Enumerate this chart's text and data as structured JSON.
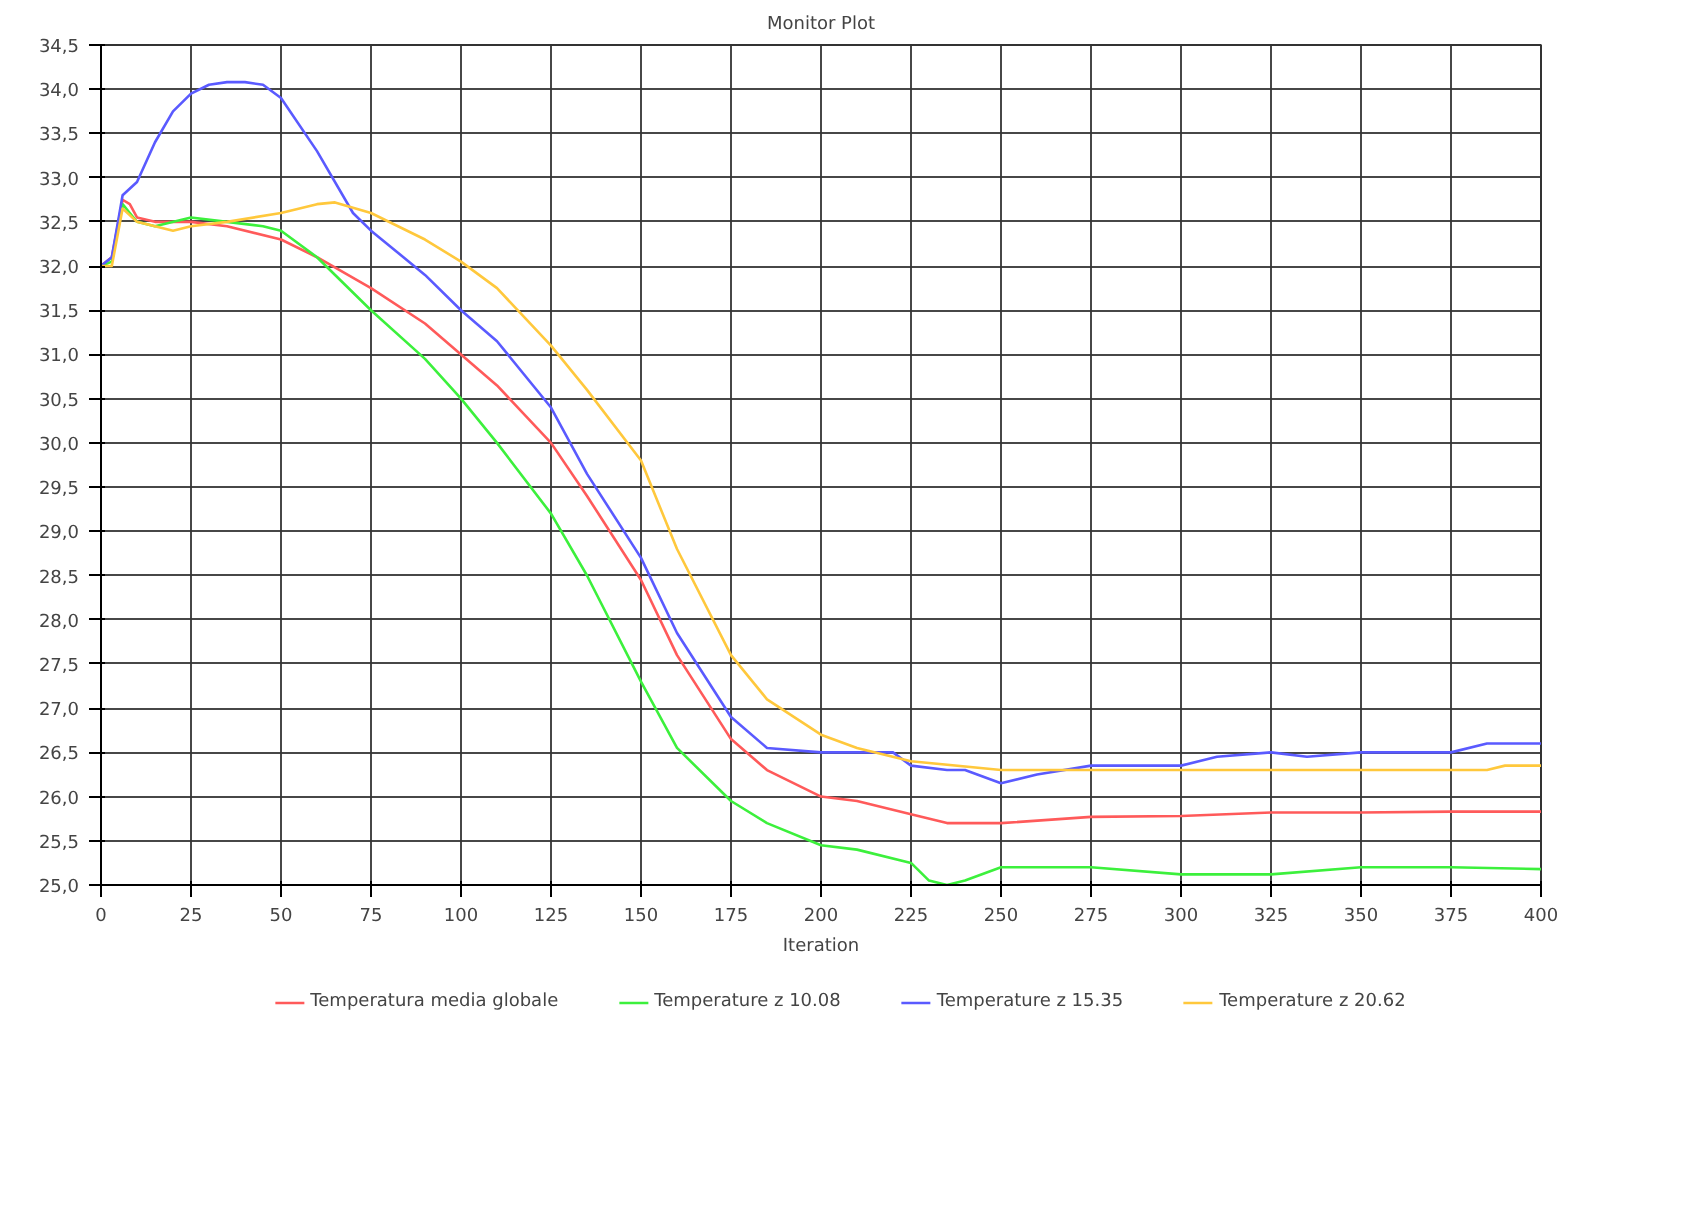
{
  "chart_data": {
    "type": "line",
    "title": "Monitor Plot",
    "xlabel": "Iteration",
    "xlim": [
      0,
      400
    ],
    "xticks": [
      0,
      25,
      50,
      75,
      100,
      125,
      150,
      175,
      200,
      225,
      250,
      275,
      300,
      325,
      350,
      375,
      400
    ],
    "ylim": [
      25,
      34.5
    ],
    "yticks": [
      {
        "value": 25,
        "label": "25,0"
      },
      {
        "value": 25.5,
        "label": "25,5"
      },
      {
        "value": 26,
        "label": "26,0"
      },
      {
        "value": 26.5,
        "label": "26,5"
      },
      {
        "value": 27,
        "label": "27,0"
      },
      {
        "value": 27.5,
        "label": "27,5"
      },
      {
        "value": 28,
        "label": "28,0"
      },
      {
        "value": 28.5,
        "label": "28,5"
      },
      {
        "value": 29,
        "label": "29,0"
      },
      {
        "value": 29.5,
        "label": "29,5"
      },
      {
        "value": 30,
        "label": "30,0"
      },
      {
        "value": 30.5,
        "label": "30,5"
      },
      {
        "value": 31,
        "label": "31,0"
      },
      {
        "value": 31.5,
        "label": "31,5"
      },
      {
        "value": 32,
        "label": "32,0"
      },
      {
        "value": 32.5,
        "label": "32,5"
      },
      {
        "value": 33,
        "label": "33,0"
      },
      {
        "value": 33.5,
        "label": "33,5"
      },
      {
        "value": 34,
        "label": "34,0"
      },
      {
        "value": 34.5,
        "label": "34,5"
      }
    ],
    "grid": true,
    "legend": "bottom",
    "marker": "none",
    "line_style": "solid",
    "series": [
      {
        "name": "Temperatura media globale",
        "color": "#ff5a5a",
        "x": [
          0,
          3,
          6,
          8,
          10,
          15,
          25,
          35,
          50,
          60,
          75,
          90,
          100,
          110,
          125,
          135,
          150,
          160,
          175,
          185,
          200,
          210,
          225,
          235,
          250,
          275,
          300,
          325,
          350,
          375,
          400
        ],
        "values": [
          32.0,
          32.1,
          32.75,
          32.7,
          32.55,
          32.5,
          32.5,
          32.45,
          32.3,
          32.1,
          31.75,
          31.35,
          31.0,
          30.65,
          30.0,
          29.4,
          28.45,
          27.6,
          26.65,
          26.3,
          26.0,
          25.95,
          25.8,
          25.7,
          25.7,
          25.77,
          25.78,
          25.82,
          25.82,
          25.83,
          25.83
        ]
      },
      {
        "name": "Temperature z 10.08",
        "color": "#3cf03c",
        "x": [
          0,
          3,
          6,
          8,
          10,
          15,
          25,
          35,
          45,
          50,
          60,
          75,
          90,
          100,
          110,
          125,
          135,
          150,
          160,
          175,
          185,
          200,
          210,
          225,
          230,
          235,
          240,
          250,
          260,
          275,
          300,
          325,
          350,
          375,
          400
        ],
        "values": [
          32.0,
          32.05,
          32.7,
          32.6,
          32.5,
          32.45,
          32.55,
          32.5,
          32.45,
          32.4,
          32.1,
          31.5,
          30.95,
          30.5,
          30.0,
          29.2,
          28.5,
          27.3,
          26.55,
          25.95,
          25.7,
          25.45,
          25.4,
          25.25,
          25.05,
          25.0,
          25.05,
          25.2,
          25.2,
          25.2,
          25.12,
          25.12,
          25.2,
          25.2,
          25.18
        ]
      },
      {
        "name": "Temperature z 15.35",
        "color": "#5a5aff",
        "x": [
          0,
          3,
          6,
          10,
          15,
          20,
          25,
          30,
          35,
          40,
          45,
          50,
          60,
          70,
          75,
          90,
          100,
          110,
          125,
          135,
          150,
          160,
          175,
          185,
          200,
          210,
          220,
          225,
          235,
          240,
          250,
          260,
          275,
          300,
          310,
          325,
          335,
          350,
          375,
          385,
          400
        ],
        "values": [
          32.0,
          32.1,
          32.8,
          32.95,
          33.4,
          33.75,
          33.95,
          34.05,
          34.08,
          34.08,
          34.05,
          33.9,
          33.3,
          32.6,
          32.4,
          31.9,
          31.5,
          31.15,
          30.4,
          29.65,
          28.7,
          27.85,
          26.9,
          26.55,
          26.5,
          26.5,
          26.5,
          26.35,
          26.3,
          26.3,
          26.15,
          26.25,
          26.35,
          26.35,
          26.45,
          26.5,
          26.45,
          26.5,
          26.5,
          26.6,
          26.6
        ]
      },
      {
        "name": "Temperature z 20.62",
        "color": "#ffc83c",
        "x": [
          0,
          3,
          6,
          10,
          15,
          20,
          25,
          35,
          50,
          60,
          65,
          75,
          90,
          100,
          110,
          125,
          135,
          150,
          160,
          175,
          185,
          200,
          210,
          225,
          250,
          275,
          300,
          350,
          385,
          390,
          400
        ],
        "values": [
          32.0,
          32.0,
          32.65,
          32.5,
          32.45,
          32.4,
          32.45,
          32.5,
          32.6,
          32.7,
          32.72,
          32.6,
          32.3,
          32.05,
          31.75,
          31.1,
          30.6,
          29.8,
          28.8,
          27.6,
          27.1,
          26.7,
          26.55,
          26.4,
          26.3,
          26.3,
          26.3,
          26.3,
          26.3,
          26.35,
          26.35
        ]
      }
    ]
  }
}
